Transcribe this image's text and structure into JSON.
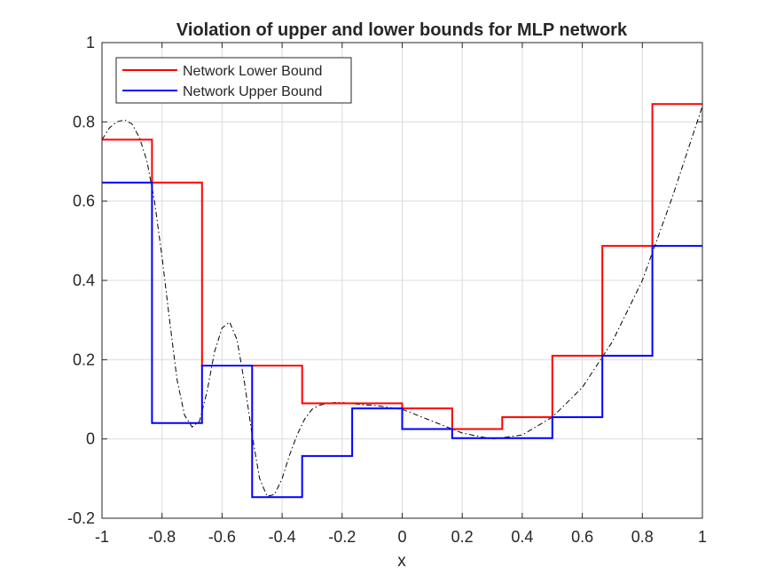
{
  "chart_data": {
    "type": "line",
    "title": "Violation of upper and lower bounds for MLP network",
    "xlabel": "x",
    "ylabel": "",
    "xlim": [
      -1,
      1
    ],
    "ylim": [
      -0.2,
      1
    ],
    "xticks": [
      -1,
      -0.8,
      -0.6,
      -0.4,
      -0.2,
      0,
      0.2,
      0.4,
      0.6,
      0.8,
      1
    ],
    "xtick_labels": [
      "-1",
      "-0.8",
      "-0.6",
      "-0.4",
      "-0.2",
      "0",
      "0.2",
      "0.4",
      "0.6",
      "0.8",
      "1"
    ],
    "yticks": [
      -0.2,
      0,
      0.2,
      0.4,
      0.6,
      0.8,
      1
    ],
    "ytick_labels": [
      "-0.2",
      "0",
      "0.2",
      "0.4",
      "0.6",
      "0.8",
      "1"
    ],
    "grid": true,
    "legend_location": "top-left",
    "legend": [
      "Network Lower Bound",
      "Network Upper Bound"
    ],
    "series": [
      {
        "name": "Network Lower Bound",
        "color": "#ff0000",
        "style": "step",
        "edges": [
          -1,
          -0.8333,
          -0.6667,
          -0.5,
          -0.3333,
          -0.1667,
          0,
          0.1667,
          0.3333,
          0.5,
          0.6667,
          0.8333,
          1
        ],
        "values": [
          0.755,
          0.647,
          0.185,
          0.185,
          0.09,
          0.09,
          0.077,
          0.025,
          0.055,
          0.21,
          0.487,
          0.845
        ]
      },
      {
        "name": "Network Upper Bound",
        "color": "#0000ff",
        "style": "step",
        "edges": [
          -1,
          -0.8333,
          -0.6667,
          -0.5,
          -0.3333,
          -0.1667,
          0,
          0.1667,
          0.3333,
          0.5,
          0.6667,
          0.8333,
          1
        ],
        "values": [
          0.647,
          0.04,
          0.185,
          -0.147,
          -0.043,
          0.077,
          0.025,
          0.002,
          0.002,
          0.055,
          0.21,
          0.487
        ]
      },
      {
        "color": "#000000",
        "style": "dash-dot",
        "x": [
          -1,
          -0.975,
          -0.95,
          -0.925,
          -0.9,
          -0.875,
          -0.85,
          -0.825,
          -0.8,
          -0.775,
          -0.75,
          -0.725,
          -0.7,
          -0.675,
          -0.65,
          -0.625,
          -0.6,
          -0.575,
          -0.55,
          -0.525,
          -0.5,
          -0.475,
          -0.45,
          -0.425,
          -0.4,
          -0.375,
          -0.35,
          -0.325,
          -0.3,
          -0.275,
          -0.25,
          -0.225,
          -0.2,
          -0.175,
          -0.15,
          -0.125,
          -0.1,
          -0.075,
          -0.05,
          -0.025,
          0,
          0.1,
          0.2,
          0.3,
          0.4,
          0.5,
          0.6,
          0.7,
          0.8,
          0.9,
          1
        ],
        "y": [
          0.755,
          0.785,
          0.8,
          0.805,
          0.795,
          0.76,
          0.7,
          0.6,
          0.46,
          0.3,
          0.15,
          0.06,
          0.03,
          0.045,
          0.12,
          0.22,
          0.28,
          0.295,
          0.25,
          0.14,
          0.01,
          -0.1,
          -0.145,
          -0.14,
          -0.1,
          -0.04,
          0.01,
          0.05,
          0.075,
          0.085,
          0.09,
          0.092,
          0.092,
          0.09,
          0.088,
          0.086,
          0.085,
          0.083,
          0.08,
          0.077,
          0.075,
          0.045,
          0.015,
          0.0,
          0.01,
          0.055,
          0.13,
          0.245,
          0.4,
          0.61,
          0.84
        ]
      }
    ]
  }
}
